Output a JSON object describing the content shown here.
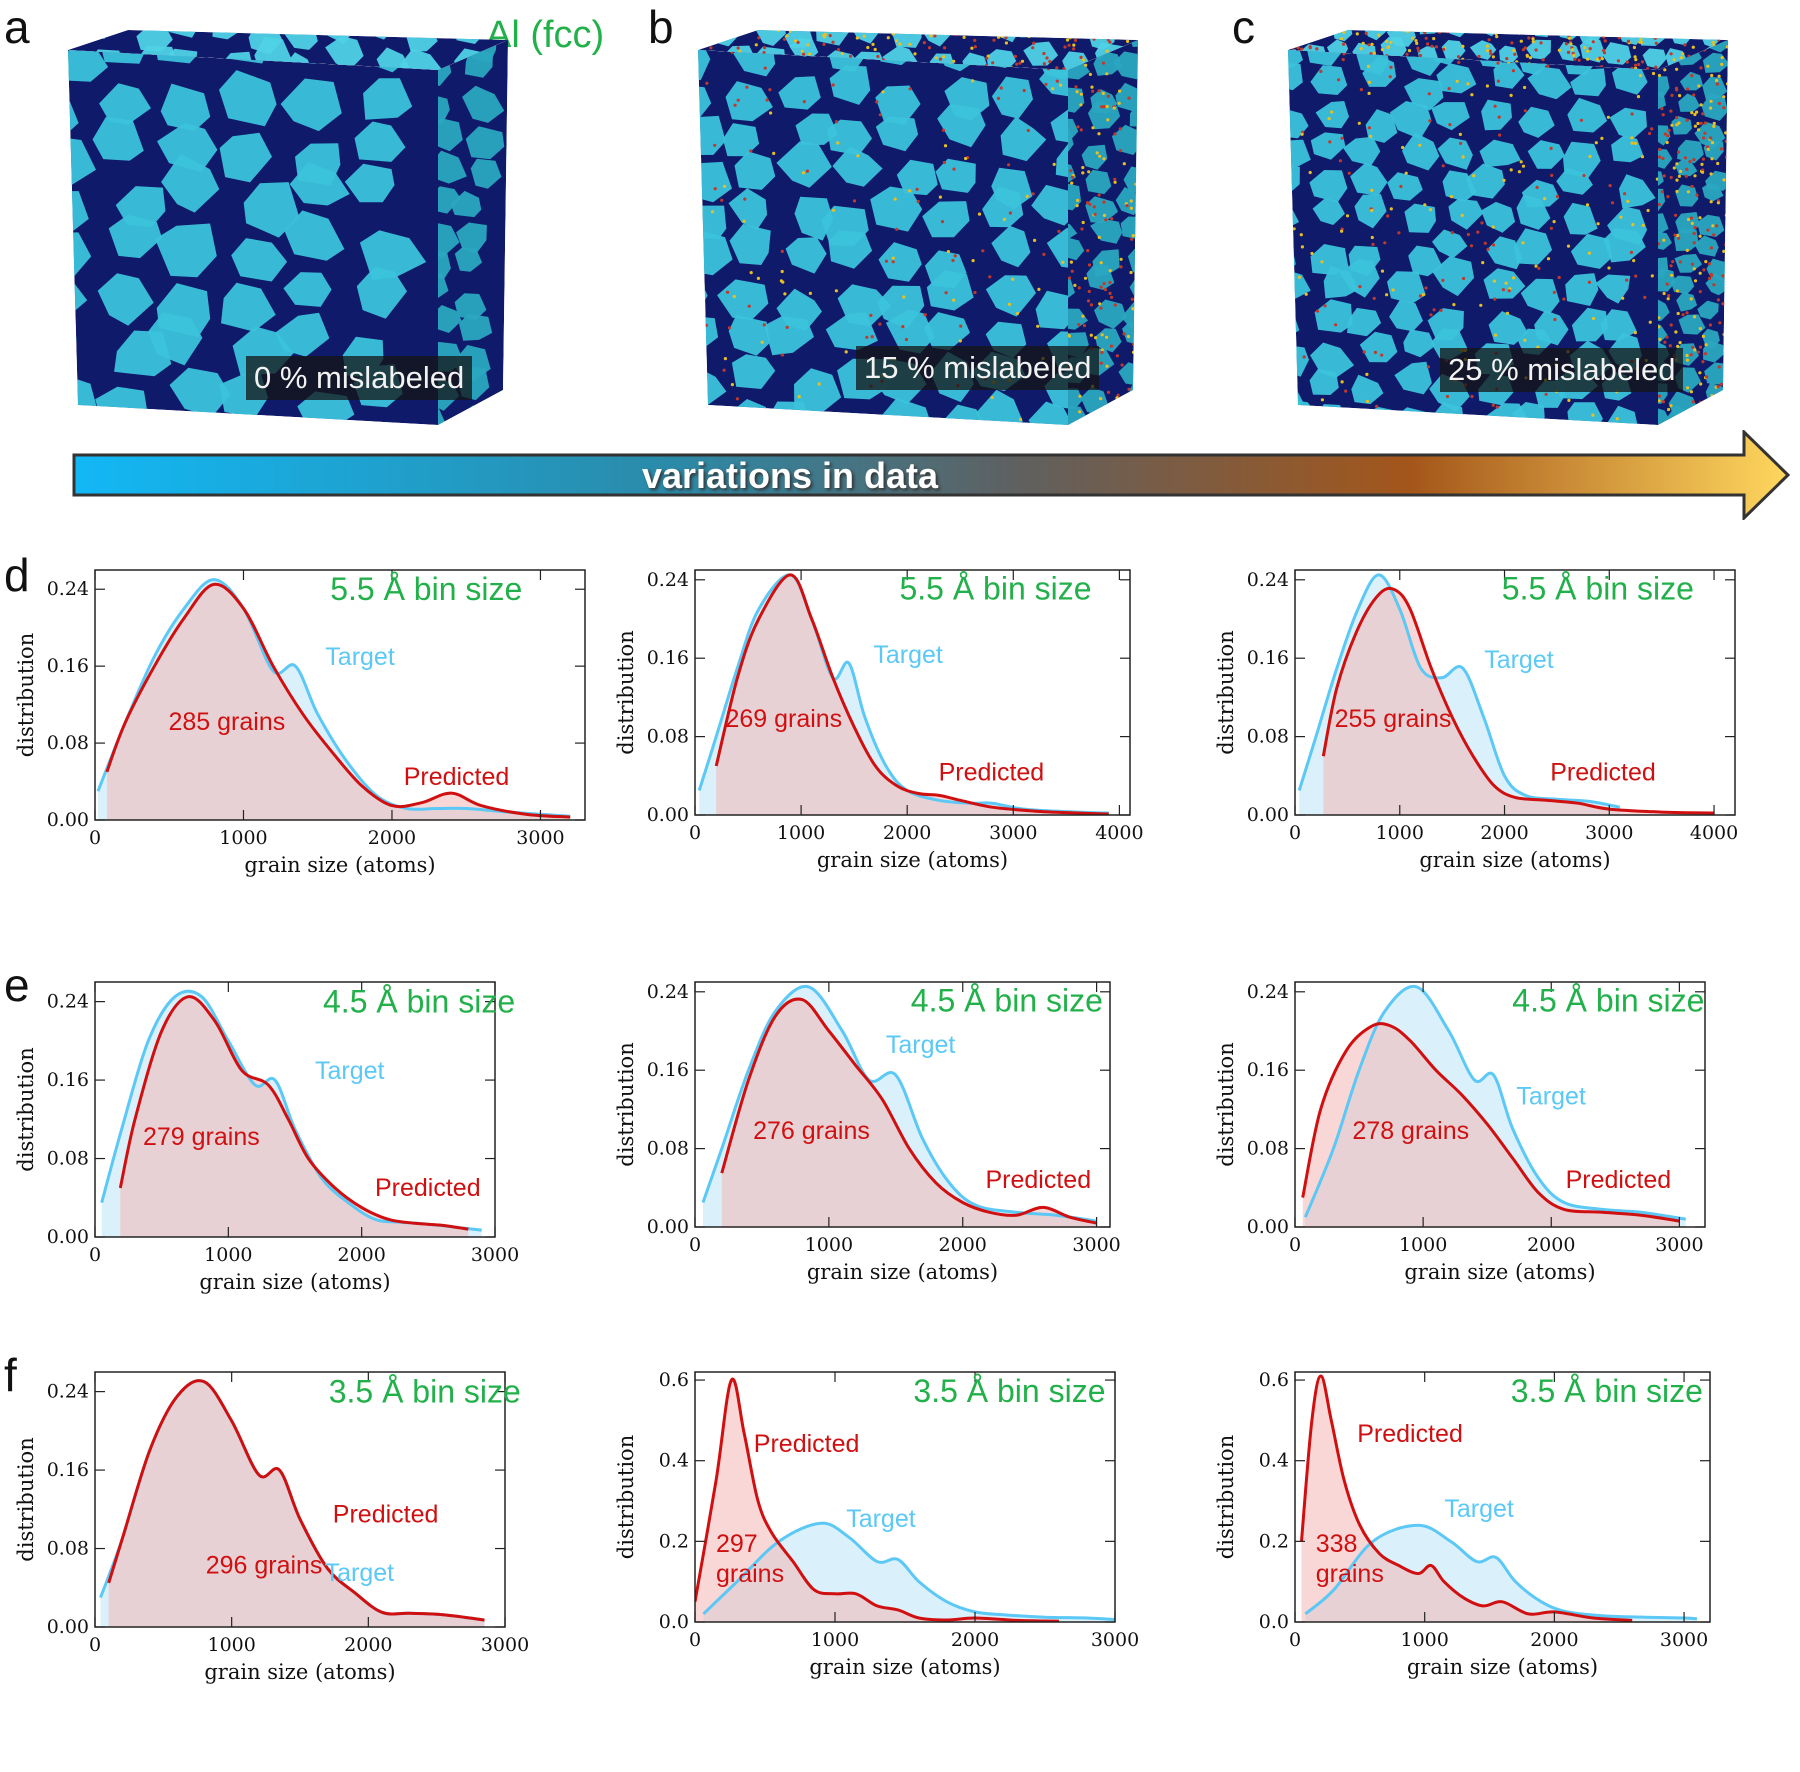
{
  "panel_labels": {
    "a": "a",
    "b": "b",
    "c": "c",
    "d": "d",
    "e": "e",
    "f": "f"
  },
  "material_label": "Al (fcc)",
  "arrow_label": "variations in data",
  "cubes": [
    {
      "mislabel_text": "0 % mislabeled",
      "noise": 0.0
    },
    {
      "mislabel_text": "15 % mislabeled",
      "noise": 0.15
    },
    {
      "mislabel_text": "25 % mislabeled",
      "noise": 0.25
    }
  ],
  "colors": {
    "target": "#5bc8f5",
    "predicted": "#d01010",
    "bin_label": "#22b04a",
    "target_fill": "#d6f0fb",
    "predicted_fill": "#f4b6b6"
  },
  "chart_data": [
    {
      "id": "d1",
      "type": "line",
      "bin_label": "5.5 Å bin size",
      "grains_text": "285 grains",
      "xlabel": "grain size (atoms)",
      "ylabel": "distribution",
      "xlim": [
        0,
        3300
      ],
      "ylim": [
        0,
        0.26
      ],
      "xticks": [
        0,
        1000,
        2000,
        3000
      ],
      "xtick_labels": [
        "0",
        "1000",
        "2000",
        "3000"
      ],
      "yticks": [
        0,
        0.08,
        0.16,
        0.24
      ],
      "ytick_labels": [
        "0.00",
        "0.08",
        "0.16",
        "0.24"
      ],
      "target": {
        "x": [
          20,
          200,
          400,
          600,
          800,
          1000,
          1200,
          1350,
          1500,
          1700,
          1900,
          2100,
          2300,
          2500,
          2800,
          3200
        ],
        "y": [
          0.03,
          0.1,
          0.17,
          0.22,
          0.25,
          0.22,
          0.155,
          0.16,
          0.11,
          0.06,
          0.025,
          0.012,
          0.012,
          0.012,
          0.008,
          0.004
        ]
      },
      "predicted": {
        "x": [
          80,
          200,
          400,
          600,
          800,
          1000,
          1200,
          1400,
          1600,
          1800,
          2000,
          2200,
          2400,
          2600,
          2900,
          3200
        ],
        "y": [
          0.05,
          0.1,
          0.16,
          0.21,
          0.245,
          0.22,
          0.16,
          0.11,
          0.07,
          0.035,
          0.015,
          0.018,
          0.028,
          0.015,
          0.006,
          0.003
        ]
      },
      "labels": {
        "target": "Target",
        "predicted": "Predicted"
      }
    },
    {
      "id": "d2",
      "type": "line",
      "bin_label": "5.5 Å bin size",
      "grains_text": "269 grains",
      "xlabel": "grain size (atoms)",
      "ylabel": "distribution",
      "xlim": [
        0,
        4100
      ],
      "ylim": [
        0,
        0.25
      ],
      "xticks": [
        0,
        1000,
        2000,
        3000,
        4000
      ],
      "xtick_labels": [
        "0",
        "1000",
        "2000",
        "3000",
        "4000"
      ],
      "yticks": [
        0,
        0.08,
        0.16,
        0.24
      ],
      "ytick_labels": [
        "0.00",
        "0.08",
        "0.16",
        "0.24"
      ],
      "target": {
        "x": [
          40,
          200,
          400,
          600,
          900,
          1100,
          1300,
          1450,
          1600,
          1800,
          2000,
          2300,
          2600,
          2800,
          3100,
          3600,
          3900
        ],
        "y": [
          0.025,
          0.08,
          0.15,
          0.21,
          0.245,
          0.2,
          0.14,
          0.155,
          0.1,
          0.05,
          0.025,
          0.015,
          0.012,
          0.012,
          0.006,
          0.003,
          0.002
        ]
      },
      "predicted": {
        "x": [
          200,
          400,
          600,
          900,
          1100,
          1300,
          1500,
          1700,
          1900,
          2100,
          2300,
          2500,
          2800,
          3200,
          3600,
          3900
        ],
        "y": [
          0.05,
          0.14,
          0.2,
          0.245,
          0.2,
          0.14,
          0.09,
          0.05,
          0.03,
          0.022,
          0.02,
          0.015,
          0.008,
          0.004,
          0.002,
          0.001
        ]
      },
      "labels": {
        "target": "Target",
        "predicted": "Predicted"
      }
    },
    {
      "id": "d3",
      "type": "line",
      "bin_label": "5.5 Å bin size",
      "grains_text": "255 grains",
      "xlabel": "grain size (atoms)",
      "ylabel": "distribution",
      "xlim": [
        0,
        4200
      ],
      "ylim": [
        0,
        0.25
      ],
      "xticks": [
        0,
        1000,
        2000,
        3000,
        4000
      ],
      "xtick_labels": [
        "0",
        "1000",
        "2000",
        "3000",
        "4000"
      ],
      "yticks": [
        0,
        0.08,
        0.16,
        0.24
      ],
      "ytick_labels": [
        "0.00",
        "0.08",
        "0.16",
        "0.24"
      ],
      "target": {
        "x": [
          40,
          200,
          400,
          600,
          800,
          1000,
          1200,
          1400,
          1600,
          1800,
          2000,
          2200,
          2500,
          2800,
          3100
        ],
        "y": [
          0.025,
          0.08,
          0.15,
          0.21,
          0.245,
          0.21,
          0.15,
          0.14,
          0.15,
          0.1,
          0.04,
          0.02,
          0.016,
          0.014,
          0.008
        ]
      },
      "predicted": {
        "x": [
          270,
          400,
          600,
          800,
          950,
          1100,
          1300,
          1500,
          1700,
          1900,
          2100,
          2400,
          2700,
          3000,
          3500,
          4000
        ],
        "y": [
          0.06,
          0.13,
          0.19,
          0.225,
          0.23,
          0.21,
          0.15,
          0.1,
          0.06,
          0.03,
          0.018,
          0.015,
          0.012,
          0.006,
          0.003,
          0.002
        ]
      },
      "labels": {
        "target": "Target",
        "predicted": "Predicted"
      }
    },
    {
      "id": "e1",
      "type": "line",
      "bin_label": "4.5 Å bin size",
      "grains_text": "279 grains",
      "xlabel": "grain size (atoms)",
      "ylabel": "distribution",
      "xlim": [
        0,
        3000
      ],
      "ylim": [
        0,
        0.26
      ],
      "xticks": [
        0,
        1000,
        2000,
        3000
      ],
      "xtick_labels": [
        "0",
        "1000",
        "2000",
        "3000"
      ],
      "yticks": [
        0,
        0.08,
        0.16,
        0.24
      ],
      "ytick_labels": [
        "0.00",
        "0.08",
        "0.16",
        "0.24"
      ],
      "target": {
        "x": [
          50,
          200,
          400,
          600,
          800,
          1000,
          1200,
          1350,
          1500,
          1700,
          1900,
          2100,
          2300,
          2500,
          2700,
          2900
        ],
        "y": [
          0.035,
          0.11,
          0.2,
          0.245,
          0.245,
          0.2,
          0.155,
          0.16,
          0.11,
          0.06,
          0.035,
          0.018,
          0.015,
          0.013,
          0.01,
          0.007
        ]
      },
      "predicted": {
        "x": [
          190,
          300,
          500,
          700,
          900,
          1100,
          1300,
          1450,
          1600,
          1800,
          2000,
          2200,
          2400,
          2600,
          2800
        ],
        "y": [
          0.05,
          0.12,
          0.21,
          0.245,
          0.22,
          0.17,
          0.155,
          0.12,
          0.08,
          0.05,
          0.03,
          0.018,
          0.014,
          0.012,
          0.008
        ]
      },
      "labels": {
        "target": "Target",
        "predicted": "Predicted"
      }
    },
    {
      "id": "e2",
      "type": "line",
      "bin_label": "4.5 Å bin size",
      "grains_text": "276 grains",
      "xlabel": "grain size (atoms)",
      "ylabel": "distribution",
      "xlim": [
        0,
        3100
      ],
      "ylim": [
        0,
        0.25
      ],
      "xticks": [
        0,
        1000,
        2000,
        3000
      ],
      "xtick_labels": [
        "0",
        "1000",
        "2000",
        "3000"
      ],
      "yticks": [
        0,
        0.08,
        0.16,
        0.24
      ],
      "ytick_labels": [
        "0.00",
        "0.08",
        "0.16",
        "0.24"
      ],
      "target": {
        "x": [
          60,
          200,
          400,
          600,
          850,
          1100,
          1300,
          1500,
          1700,
          1900,
          2100,
          2400,
          2700,
          3000
        ],
        "y": [
          0.025,
          0.08,
          0.16,
          0.22,
          0.245,
          0.2,
          0.15,
          0.155,
          0.09,
          0.045,
          0.022,
          0.015,
          0.012,
          0.006
        ]
      },
      "predicted": {
        "x": [
          200,
          400,
          600,
          800,
          1000,
          1200,
          1400,
          1600,
          1800,
          2000,
          2200,
          2400,
          2600,
          2800,
          3000
        ],
        "y": [
          0.055,
          0.15,
          0.215,
          0.232,
          0.2,
          0.165,
          0.13,
          0.08,
          0.045,
          0.025,
          0.015,
          0.012,
          0.02,
          0.01,
          0.004
        ]
      },
      "labels": {
        "target": "Target",
        "predicted": "Predicted"
      }
    },
    {
      "id": "e3",
      "type": "line",
      "bin_label": "4.5 Å bin size",
      "grains_text": "278 grains",
      "xlabel": "grain size (atoms)",
      "ylabel": "distribution",
      "xlim": [
        0,
        3200
      ],
      "ylim": [
        0,
        0.25
      ],
      "xticks": [
        0,
        1000,
        2000,
        3000
      ],
      "xtick_labels": [
        "0",
        "1000",
        "2000",
        "3000"
      ],
      "yticks": [
        0,
        0.08,
        0.16,
        0.24
      ],
      "ytick_labels": [
        "0.00",
        "0.08",
        "0.16",
        "0.24"
      ],
      "target": {
        "x": [
          80,
          300,
          500,
          700,
          950,
          1200,
          1400,
          1550,
          1700,
          1900,
          2100,
          2400,
          2700,
          3050
        ],
        "y": [
          0.01,
          0.08,
          0.16,
          0.22,
          0.245,
          0.2,
          0.15,
          0.155,
          0.1,
          0.05,
          0.025,
          0.018,
          0.015,
          0.008
        ]
      },
      "predicted": {
        "x": [
          60,
          200,
          400,
          600,
          750,
          900,
          1100,
          1300,
          1500,
          1700,
          1900,
          2100,
          2400,
          2700,
          3000
        ],
        "y": [
          0.03,
          0.12,
          0.18,
          0.205,
          0.205,
          0.19,
          0.16,
          0.135,
          0.105,
          0.07,
          0.035,
          0.018,
          0.015,
          0.012,
          0.006
        ]
      },
      "labels": {
        "target": "Target",
        "predicted": "Predicted"
      }
    },
    {
      "id": "f1",
      "type": "line",
      "bin_label": "3.5 Å bin size",
      "grains_text": "296 grains",
      "xlabel": "grain size (atoms)",
      "ylabel": "distribution",
      "xlim": [
        0,
        3000
      ],
      "ylim": [
        0,
        0.26
      ],
      "xticks": [
        0,
        1000,
        2000,
        3000
      ],
      "xtick_labels": [
        "0",
        "1000",
        "2000",
        "3000"
      ],
      "yticks": [
        0,
        0.08,
        0.16,
        0.24
      ],
      "ytick_labels": [
        "0.00",
        "0.08",
        "0.16",
        "0.24"
      ],
      "target": {
        "x": [
          40,
          200,
          400,
          600,
          800,
          1000,
          1200,
          1350,
          1500,
          1700,
          1900,
          2100,
          2300,
          2500,
          2700,
          2850
        ],
        "y": [
          0.03,
          0.09,
          0.18,
          0.235,
          0.25,
          0.21,
          0.155,
          0.16,
          0.11,
          0.06,
          0.035,
          0.015,
          0.014,
          0.013,
          0.01,
          0.007
        ]
      },
      "predicted": {
        "x": [
          100,
          200,
          400,
          600,
          800,
          1000,
          1200,
          1350,
          1500,
          1700,
          1900,
          2100,
          2300,
          2500,
          2700,
          2850
        ],
        "y": [
          0.045,
          0.09,
          0.18,
          0.235,
          0.25,
          0.21,
          0.155,
          0.16,
          0.11,
          0.06,
          0.035,
          0.015,
          0.014,
          0.013,
          0.01,
          0.007
        ]
      },
      "labels": {
        "target": "Target",
        "predicted": "Predicted"
      }
    },
    {
      "id": "f2",
      "type": "line",
      "bin_label": "3.5 Å bin size",
      "grains_text": "297\ngrains",
      "xlabel": "grain size (atoms)",
      "ylabel": "distribution",
      "xlim": [
        0,
        3000
      ],
      "ylim": [
        0,
        0.62
      ],
      "xticks": [
        0,
        1000,
        2000,
        3000
      ],
      "xtick_labels": [
        "0",
        "1000",
        "2000",
        "3000"
      ],
      "yticks": [
        0,
        0.2,
        0.4,
        0.6
      ],
      "ytick_labels": [
        "0.0",
        "0.2",
        "0.4",
        "0.6"
      ],
      "target": {
        "x": [
          60,
          300,
          600,
          900,
          1100,
          1300,
          1450,
          1600,
          1800,
          2000,
          2200,
          2500,
          2800,
          3000
        ],
        "y": [
          0.02,
          0.1,
          0.2,
          0.245,
          0.21,
          0.15,
          0.155,
          0.1,
          0.05,
          0.025,
          0.018,
          0.012,
          0.01,
          0.006
        ]
      },
      "predicted": {
        "x": [
          0,
          150,
          260,
          350,
          450,
          550,
          700,
          850,
          1000,
          1150,
          1300,
          1450,
          1600,
          1800,
          2000,
          2300,
          2600
        ],
        "y": [
          0.05,
          0.35,
          0.6,
          0.47,
          0.3,
          0.22,
          0.15,
          0.08,
          0.07,
          0.07,
          0.04,
          0.03,
          0.01,
          0.005,
          0.01,
          0.004,
          0.002
        ]
      },
      "labels": {
        "target": "Target",
        "predicted": "Predicted"
      }
    },
    {
      "id": "f3",
      "type": "line",
      "bin_label": "3.5 Å bin size",
      "grains_text": "338\ngrains",
      "xlabel": "grain size (atoms)",
      "ylabel": "distribution",
      "xlim": [
        0,
        3200
      ],
      "ylim": [
        0,
        0.62
      ],
      "xticks": [
        0,
        1000,
        2000,
        3000
      ],
      "xtick_labels": [
        "0",
        "1000",
        "2000",
        "3000"
      ],
      "yticks": [
        0,
        0.2,
        0.4,
        0.6
      ],
      "ytick_labels": [
        "0.0",
        "0.2",
        "0.4",
        "0.6"
      ],
      "target": {
        "x": [
          80,
          300,
          600,
          950,
          1200,
          1400,
          1550,
          1700,
          1900,
          2100,
          2400,
          2700,
          3000,
          3100
        ],
        "y": [
          0.02,
          0.08,
          0.2,
          0.24,
          0.2,
          0.15,
          0.16,
          0.1,
          0.05,
          0.025,
          0.015,
          0.012,
          0.01,
          0.008
        ]
      },
      "predicted": {
        "x": [
          50,
          130,
          200,
          280,
          380,
          500,
          650,
          800,
          950,
          1050,
          1150,
          1300,
          1450,
          1600,
          1800,
          2000,
          2300,
          2600
        ],
        "y": [
          0.2,
          0.5,
          0.61,
          0.5,
          0.35,
          0.24,
          0.17,
          0.14,
          0.12,
          0.14,
          0.1,
          0.06,
          0.04,
          0.05,
          0.02,
          0.025,
          0.01,
          0.004
        ]
      },
      "labels": {
        "target": "Target",
        "predicted": "Predicted"
      }
    }
  ]
}
